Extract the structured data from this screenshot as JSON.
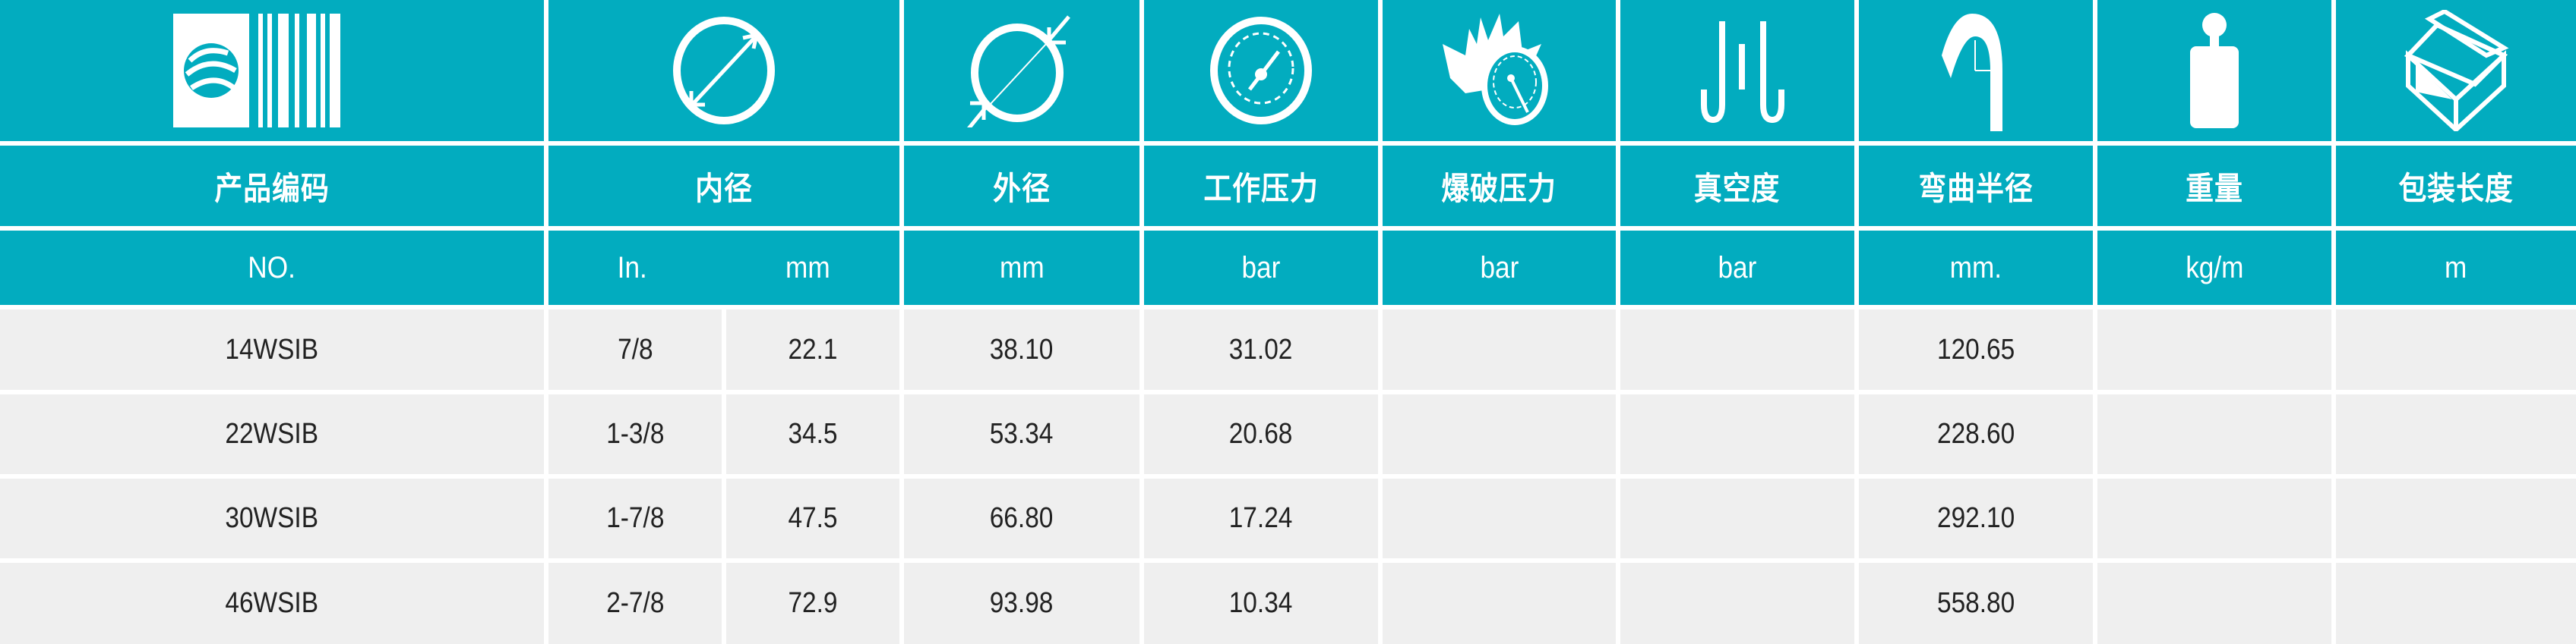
{
  "colors": {
    "header": "#02acbf",
    "row": "#efefef",
    "text": "#222222"
  },
  "icons": [
    "barcode-logo-icon",
    "inner-diameter-icon",
    "outer-diameter-icon",
    "pressure-gauge-icon",
    "burst-pressure-icon",
    "vacuum-icon",
    "bend-radius-icon",
    "weight-icon",
    "package-box-icon"
  ],
  "headers": [
    "产品编码",
    "内径",
    "外径",
    "工作压力",
    "爆破压力",
    "真空度",
    "弯曲半径",
    "重量",
    "包装长度"
  ],
  "units": [
    "NO.",
    "In.",
    "mm",
    "mm",
    "bar",
    "bar",
    "bar",
    "mm.",
    "kg/m",
    "m"
  ],
  "rows": [
    [
      "14WSIB",
      "7/8",
      "22.1",
      "38.10",
      "31.02",
      "",
      "",
      "120.65",
      "",
      ""
    ],
    [
      "22WSIB",
      "1-3/8",
      "34.5",
      "53.34",
      "20.68",
      "",
      "",
      "228.60",
      "",
      ""
    ],
    [
      "30WSIB",
      "1-7/8",
      "47.5",
      "66.80",
      "17.24",
      "",
      "",
      "292.10",
      "",
      ""
    ],
    [
      "46WSIB",
      "2-7/8",
      "72.9",
      "93.98",
      "10.34",
      "",
      "",
      "558.80",
      "",
      ""
    ]
  ]
}
